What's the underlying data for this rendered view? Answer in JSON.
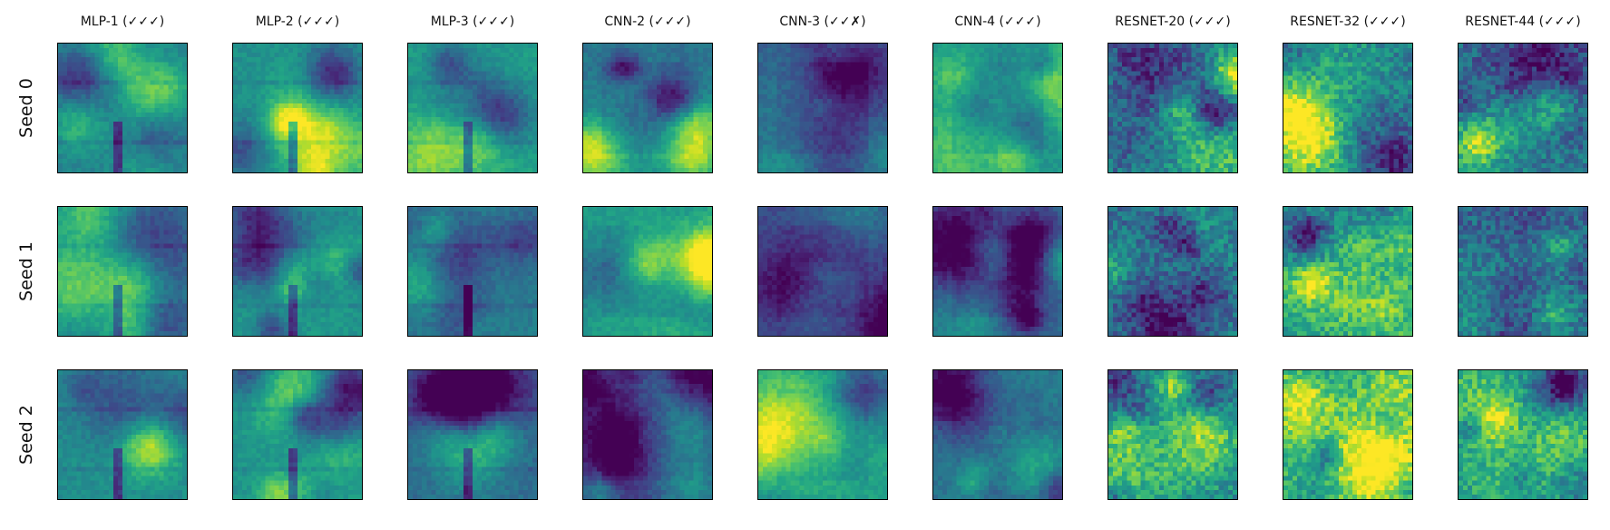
{
  "chart_data": {
    "type": "heatmap",
    "colormap": "viridis",
    "grid": false,
    "column_titles": [
      "MLP-1 (✓✓✓)",
      "MLP-2 (✓✓✓)",
      "MLP-3 (✓✓✓)",
      "CNN-2 (✓✓✓)",
      "CNN-3 (✓✓✗)",
      "CNN-4 (✓✓✓)",
      "RESNET-20 (✓✓✓)",
      "RESNET-32 (✓✓✓)",
      "RESNET-44 (✓✓✓)"
    ],
    "row_labels": [
      "Seed 0",
      "Seed 1",
      "Seed 2"
    ],
    "panel_mean_values": [
      [
        0.45,
        0.5,
        0.55,
        0.38,
        0.3,
        0.55,
        0.45,
        0.45,
        0.35
      ],
      [
        0.5,
        0.52,
        0.42,
        0.55,
        0.22,
        0.38,
        0.4,
        0.55,
        0.32
      ],
      [
        0.48,
        0.52,
        0.35,
        0.22,
        0.58,
        0.38,
        0.45,
        0.65,
        0.55
      ]
    ]
  }
}
